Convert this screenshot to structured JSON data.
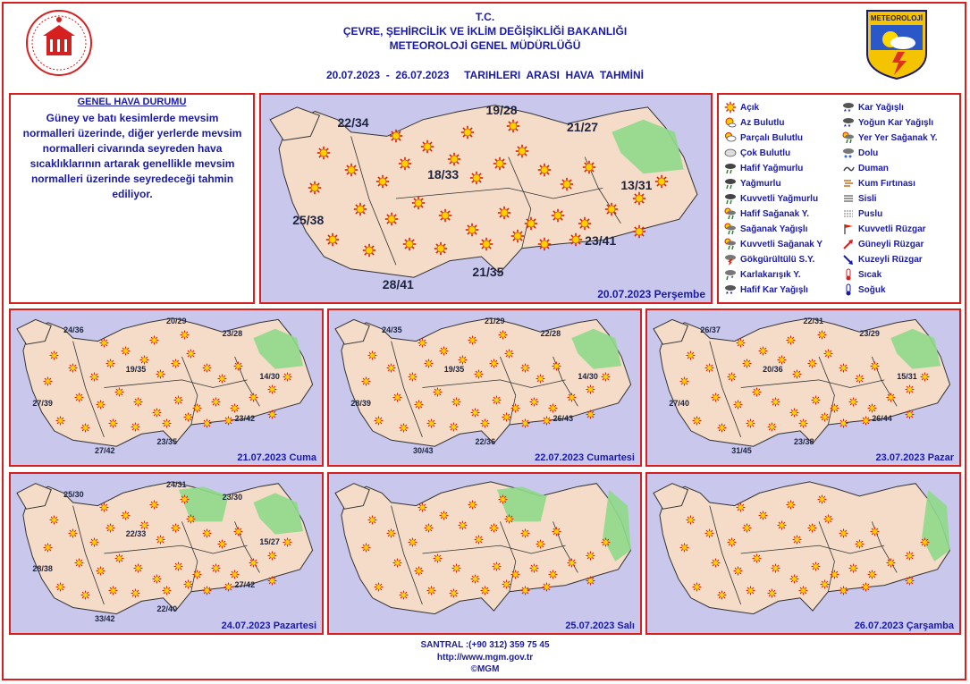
{
  "header": {
    "line1": "T.C.",
    "line2": "ÇEVRE, ŞEHİRCİLİK VE İKLİM DEĞİŞİKLİĞİ BAKANLIĞI",
    "line3": "METEOROLOJİ GENEL MÜDÜRLÜĞÜ",
    "date_range": "20.07.2023  -  26.07.2023     TARIHLERI  ARASI  HAVA  TAHMİNİ",
    "right_logo_text": "METEOROLOJİ"
  },
  "general": {
    "title": "GENEL HAVA DURUMU",
    "text": "Güney ve batı kesimlerde mevsim normalleri üzerinde, diğer yerlerde mevsim normalleri civarında seyreden hava sıcaklıklarının artarak genellikle mevsim normalleri üzerinde seyredeceği tahmin ediliyor."
  },
  "legend": [
    {
      "label": "Açık",
      "icon": "sun-icon"
    },
    {
      "label": "Az Bulutlu",
      "icon": "sun-small-cloud-icon"
    },
    {
      "label": "Parçalı Bulutlu",
      "icon": "partly-cloudy-icon"
    },
    {
      "label": "Çok Bulutlu",
      "icon": "cloud-icon"
    },
    {
      "label": "Hafif Yağmurlu",
      "icon": "light-rain-icon"
    },
    {
      "label": "Yağmurlu",
      "icon": "rain-icon"
    },
    {
      "label": "Kuvvetli Yağmurlu",
      "icon": "heavy-rain-icon"
    },
    {
      "label": "Hafif Sağanak Y.",
      "icon": "light-shower-icon"
    },
    {
      "label": "Sağanak Yağışlı",
      "icon": "shower-icon"
    },
    {
      "label": "Kuvvetli Sağanak Y",
      "icon": "heavy-shower-icon"
    },
    {
      "label": "Gökgürültülü S.Y.",
      "icon": "thunderstorm-icon"
    },
    {
      "label": "Karlakarışık Y.",
      "icon": "sleet-icon"
    },
    {
      "label": "Hafif Kar Yağışlı",
      "icon": "light-snow-icon"
    },
    {
      "label": "Kar Yağışlı",
      "icon": "snow-icon"
    },
    {
      "label": "Yoğun Kar Yağışlı",
      "icon": "heavy-snow-icon"
    },
    {
      "label": "Yer Yer Sağanak Y.",
      "icon": "scattered-shower-icon"
    },
    {
      "label": "Dolu",
      "icon": "hail-icon"
    },
    {
      "label": "Duman",
      "icon": "smoke-icon"
    },
    {
      "label": "Kum Fırtınası",
      "icon": "sandstorm-icon"
    },
    {
      "label": "Sisli",
      "icon": "fog-icon"
    },
    {
      "label": "Puslu",
      "icon": "haze-icon"
    },
    {
      "label": "Kuvvetli Rüzgar",
      "icon": "strong-wind-icon"
    },
    {
      "label": "Güneyli Rüzgar",
      "icon": "south-wind-icon"
    },
    {
      "label": "Kuzeyli Rüzgar",
      "icon": "north-wind-icon"
    },
    {
      "label": "Sıcak",
      "icon": "hot-icon"
    },
    {
      "label": "Soğuk",
      "icon": "cold-icon"
    }
  ],
  "maps": [
    {
      "date": "20.07.2023 Perşembe",
      "temps": [
        "22/34",
        "19/28",
        "21/27",
        "18/33",
        "13/31",
        "25/38",
        "23/41",
        "21/35",
        "28/41"
      ]
    },
    {
      "date": "21.07.2023 Cuma",
      "temps": [
        "24/36",
        "20/29",
        "23/28",
        "19/35",
        "14/30",
        "27/39",
        "23/42",
        "23/35",
        "27/42"
      ]
    },
    {
      "date": "22.07.2023 Cumartesi",
      "temps": [
        "24/35",
        "21/29",
        "22/28",
        "19/35",
        "14/30",
        "28/39",
        "26/43",
        "22/36",
        "30/43"
      ]
    },
    {
      "date": "23.07.2023 Pazar",
      "temps": [
        "26/37",
        "22/31",
        "23/29",
        "20/36",
        "15/31",
        "27/40",
        "26/44",
        "23/38",
        "31/45"
      ]
    },
    {
      "date": "24.07.2023 Pazartesi",
      "temps": [
        "25/30",
        "24/31",
        "23/30",
        "22/33",
        "15/27",
        "28/38",
        "27/42",
        "22/40",
        "33/42"
      ]
    },
    {
      "date": "25.07.2023 Salı",
      "temps": []
    },
    {
      "date": "26.07.2023 Çarşamba",
      "temps": []
    }
  ],
  "footer": {
    "phone": "SANTRAL :(+90 312) 359 75 45",
    "web": "http://www.mgm.gov.tr",
    "copyright": "©MGM"
  },
  "colors": {
    "accent": "#d62020",
    "text": "#1a1aa8",
    "sea": "#c9c8ec",
    "land": "#f5dcc8",
    "rain": "#8fd98a"
  }
}
